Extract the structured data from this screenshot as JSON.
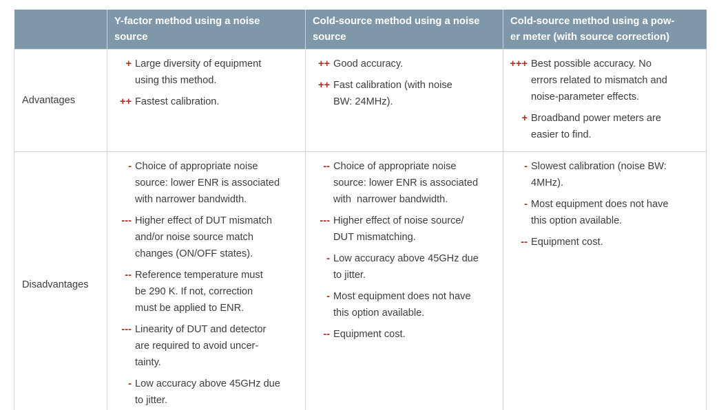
{
  "table": {
    "corner_header": "",
    "column_headers": [
      "Y-factor method using a noise\nsource",
      "Cold-source method using a noise\nsource",
      "Cold-source method using a pow-\ner meter (with source correction)"
    ],
    "rows": [
      {
        "label": "Advantages",
        "cells": [
          [
            {
              "marker": "+",
              "text": "Large diversity of equipment\nusing this method."
            },
            {
              "marker": "++",
              "text": "Fastest calibration."
            }
          ],
          [
            {
              "marker": "++",
              "text": "Good accuracy."
            },
            {
              "marker": "++",
              "text": "Fast calibration (with noise\nBW: 24MHz)."
            }
          ],
          [
            {
              "marker": "+++",
              "text": "Best possible accuracy. No\nerrors related to mismatch and\nnoise-parameter effects."
            },
            {
              "marker": "+",
              "text": "Broadband power meters are\neasier to find."
            }
          ]
        ]
      },
      {
        "label": "Disadvantages",
        "cells": [
          [
            {
              "marker": "-",
              "text": "Choice of appropriate noise\nsource: lower ENR is associated\nwith narrower bandwidth."
            },
            {
              "marker": "---",
              "text": "Higher effect of DUT mismatch\nand/or noise source match\nchanges (ON/OFF states)."
            },
            {
              "marker": "--",
              "text": "Reference temperature must\nbe 290 K. If not, correction\nmust be applied to ENR."
            },
            {
              "marker": "---",
              "text": "Linearity of DUT and detector\nare required to avoid uncer-\ntainty."
            },
            {
              "marker": "-",
              "text": "Low accuracy above 45GHz due\nto jitter."
            }
          ],
          [
            {
              "marker": "--",
              "text": "Choice of appropriate noise\nsource: lower ENR is associated\nwith  narrower bandwidth."
            },
            {
              "marker": "---",
              "text": "Higher effect of noise source/\nDUT mismatching."
            },
            {
              "marker": "-",
              "text": "Low accuracy above 45GHz due\nto jitter."
            },
            {
              "marker": "-",
              "text": "Most equipment does not have\nthis option available."
            },
            {
              "marker": "--",
              "text": "Equipment cost."
            }
          ],
          [
            {
              "marker": "-",
              "text": "Slowest calibration (noise BW:\n4MHz)."
            },
            {
              "marker": "-",
              "text": "Most equipment does not have\nthis option available."
            },
            {
              "marker": "--",
              "text": "Equipment cost."
            }
          ]
        ]
      }
    ],
    "colors": {
      "header_background": "#7f98a9",
      "header_text": "#ffffff",
      "body_text": "#3d3d3d",
      "marker_accent": "#a93226",
      "border": "#cdd3d8"
    }
  }
}
